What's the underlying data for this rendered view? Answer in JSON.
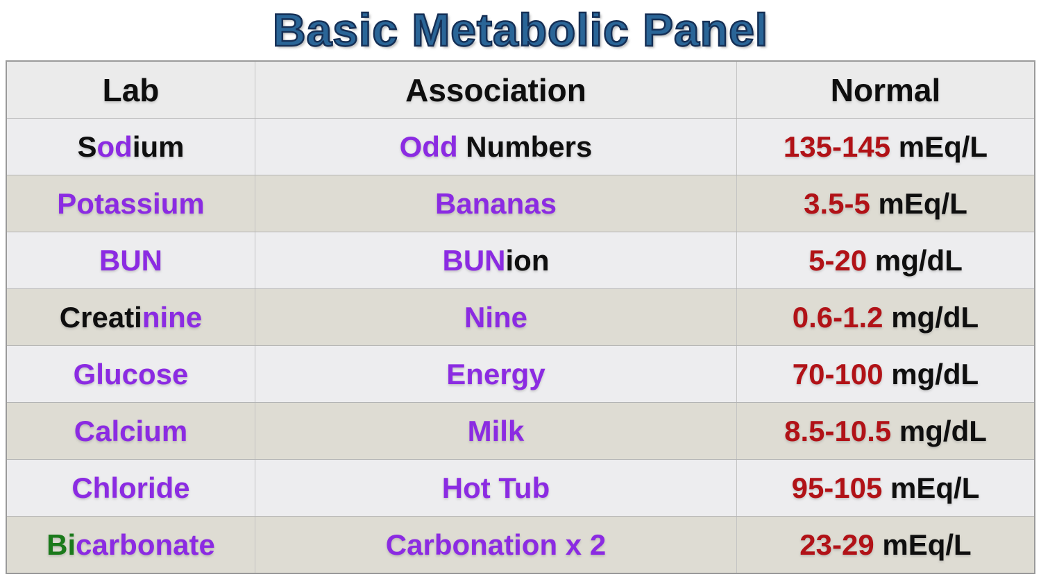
{
  "title": {
    "text": "Basic Metabolic Panel"
  },
  "colors": {
    "black": "#0F0F0F",
    "purple": "#8B2BE2",
    "red": "#B11217",
    "green": "#1B7A1B",
    "title_fill": "#2A6597",
    "title_stroke": "#152F55",
    "row_light_bg": "#EDEDEF",
    "row_dark_bg": "#DEDCD3",
    "header_bg": "#EBEBEB"
  },
  "table": {
    "headers": [
      "Lab",
      "Association",
      "Normal"
    ],
    "rows": [
      {
        "lab": [
          {
            "t": "S",
            "c": "black"
          },
          {
            "t": "od",
            "c": "purple"
          },
          {
            "t": "ium",
            "c": "black"
          }
        ],
        "association": [
          {
            "t": "Odd",
            "c": "purple"
          },
          {
            "t": " Numbers",
            "c": "black"
          }
        ],
        "normal": [
          {
            "t": "135-145",
            "c": "red"
          },
          {
            "t": " mEq/L",
            "c": "black"
          }
        ]
      },
      {
        "lab": [
          {
            "t": "Potassium",
            "c": "purple"
          }
        ],
        "association": [
          {
            "t": "Bananas",
            "c": "purple"
          }
        ],
        "normal": [
          {
            "t": "3.5-5",
            "c": "red"
          },
          {
            "t": " mEq/L",
            "c": "black"
          }
        ]
      },
      {
        "lab": [
          {
            "t": "BUN",
            "c": "purple"
          }
        ],
        "association": [
          {
            "t": "BUN",
            "c": "purple"
          },
          {
            "t": "ion",
            "c": "black"
          }
        ],
        "normal": [
          {
            "t": "5-20",
            "c": "red"
          },
          {
            "t": " mg/dL",
            "c": "black"
          }
        ]
      },
      {
        "lab": [
          {
            "t": "Creati",
            "c": "black"
          },
          {
            "t": "nine",
            "c": "purple"
          }
        ],
        "association": [
          {
            "t": "Nine",
            "c": "purple"
          }
        ],
        "normal": [
          {
            "t": "0.6-1.2",
            "c": "red"
          },
          {
            "t": " mg/dL",
            "c": "black"
          }
        ]
      },
      {
        "lab": [
          {
            "t": "Glucose",
            "c": "purple"
          }
        ],
        "association": [
          {
            "t": "Energy",
            "c": "purple"
          }
        ],
        "normal": [
          {
            "t": "70-100",
            "c": "red"
          },
          {
            "t": " mg/dL",
            "c": "black"
          }
        ]
      },
      {
        "lab": [
          {
            "t": "Calcium",
            "c": "purple"
          }
        ],
        "association": [
          {
            "t": "Milk",
            "c": "purple"
          }
        ],
        "normal": [
          {
            "t": "8.5-10.5",
            "c": "red"
          },
          {
            "t": " mg/dL",
            "c": "black"
          }
        ]
      },
      {
        "lab": [
          {
            "t": "Chloride",
            "c": "purple"
          }
        ],
        "association": [
          {
            "t": "Hot Tub",
            "c": "purple"
          }
        ],
        "normal": [
          {
            "t": "95-105",
            "c": "red"
          },
          {
            "t": " mEq/L",
            "c": "black"
          }
        ]
      },
      {
        "lab": [
          {
            "t": "Bi",
            "c": "green"
          },
          {
            "t": "carbonate",
            "c": "purple"
          }
        ],
        "association": [
          {
            "t": "Carbonation x 2",
            "c": "purple"
          }
        ],
        "normal": [
          {
            "t": "23-29",
            "c": "red"
          },
          {
            "t": " mEq/L",
            "c": "black"
          }
        ]
      }
    ]
  }
}
